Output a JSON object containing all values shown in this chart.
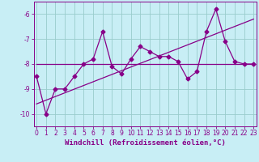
{
  "xlabel": "Windchill (Refroidissement éolien,°C)",
  "background_color": "#c8eef5",
  "line_color": "#880088",
  "grid_color": "#99cccc",
  "x_data": [
    0,
    1,
    2,
    3,
    4,
    5,
    6,
    7,
    8,
    9,
    10,
    11,
    12,
    13,
    14,
    15,
    16,
    17,
    18,
    19,
    20,
    21,
    22,
    23
  ],
  "y_data": [
    -8.5,
    -10.0,
    -9.0,
    -9.0,
    -8.5,
    -8.0,
    -7.8,
    -6.7,
    -8.1,
    -8.4,
    -7.8,
    -7.3,
    -7.5,
    -7.7,
    -7.7,
    -7.9,
    -8.6,
    -8.3,
    -6.7,
    -5.8,
    -7.1,
    -7.9,
    -8.0,
    -8.0
  ],
  "trend1_x": [
    0,
    23
  ],
  "trend1_y": [
    -8.0,
    -8.0
  ],
  "trend2_x": [
    0,
    23
  ],
  "trend2_y": [
    -9.6,
    -6.2
  ],
  "xlim": [
    -0.3,
    23.3
  ],
  "ylim": [
    -10.5,
    -5.5
  ],
  "yticks": [
    -10,
    -9,
    -8,
    -7,
    -6
  ],
  "xticks": [
    0,
    1,
    2,
    3,
    4,
    5,
    6,
    7,
    8,
    9,
    10,
    11,
    12,
    13,
    14,
    15,
    16,
    17,
    18,
    19,
    20,
    21,
    22,
    23
  ],
  "tick_fontsize": 5.5,
  "label_fontsize": 6.5,
  "marker": "D",
  "marker_size": 2.5,
  "line_width": 0.9
}
